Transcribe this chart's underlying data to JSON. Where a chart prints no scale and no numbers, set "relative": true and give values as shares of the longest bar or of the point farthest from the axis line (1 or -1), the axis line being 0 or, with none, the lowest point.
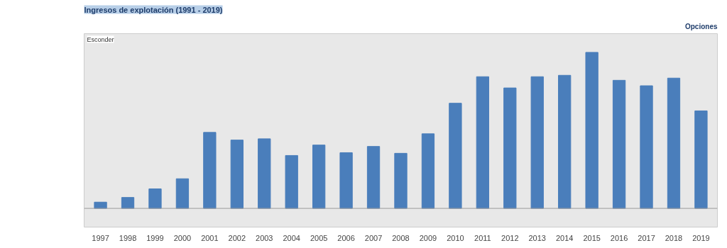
{
  "chart_data": {
    "type": "bar",
    "title": "Ingresos de explotación (1991 - 2019)",
    "relative": true,
    "categories": [
      "1997",
      "1998",
      "1999",
      "2000",
      "2001",
      "2002",
      "2003",
      "2004",
      "2005",
      "2006",
      "2007",
      "2008",
      "2009",
      "2010",
      "2011",
      "2012",
      "2013",
      "2014",
      "2015",
      "2016",
      "2017",
      "2018",
      "2019"
    ],
    "values": [
      0.04,
      0.07,
      0.125,
      0.19,
      0.487,
      0.438,
      0.446,
      0.339,
      0.406,
      0.357,
      0.397,
      0.353,
      0.478,
      0.674,
      0.844,
      0.772,
      0.844,
      0.853,
      1,
      0.821,
      0.786,
      0.835,
      0.625
    ],
    "color": "#4a7ebb",
    "annotations": [
      "Opciones",
      "Esconder"
    ]
  }
}
